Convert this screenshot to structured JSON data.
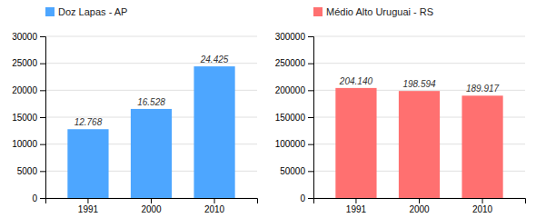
{
  "chart_data": [
    {
      "type": "bar",
      "categories": [
        "1991",
        "2000",
        "2010"
      ],
      "series": [
        {
          "name": "Doz Lapas - AP",
          "color": "#4da6ff",
          "values": [
            12768,
            16528,
            24425
          ],
          "value_labels": [
            "12.768",
            "16.528",
            "24.425"
          ]
        }
      ],
      "ylim": [
        0,
        30000
      ],
      "yticks": [
        0,
        5000,
        10000,
        15000,
        20000,
        25000,
        30000
      ],
      "grid": true,
      "legend": "top-left",
      "data_labels": true
    },
    {
      "type": "bar",
      "categories": [
        "1991",
        "2000",
        "2010"
      ],
      "series": [
        {
          "name": "Médio Alto Uruguai - RS",
          "color": "#FF7070",
          "values": [
            204140,
            198594,
            189917
          ],
          "value_labels": [
            "204.140",
            "198.594",
            "189.917"
          ]
        }
      ],
      "ylim": [
        0,
        300000
      ],
      "yticks": [
        0,
        50000,
        100000,
        150000,
        200000,
        250000,
        300000
      ],
      "grid": true,
      "legend": "top-left",
      "data_labels": true
    }
  ]
}
